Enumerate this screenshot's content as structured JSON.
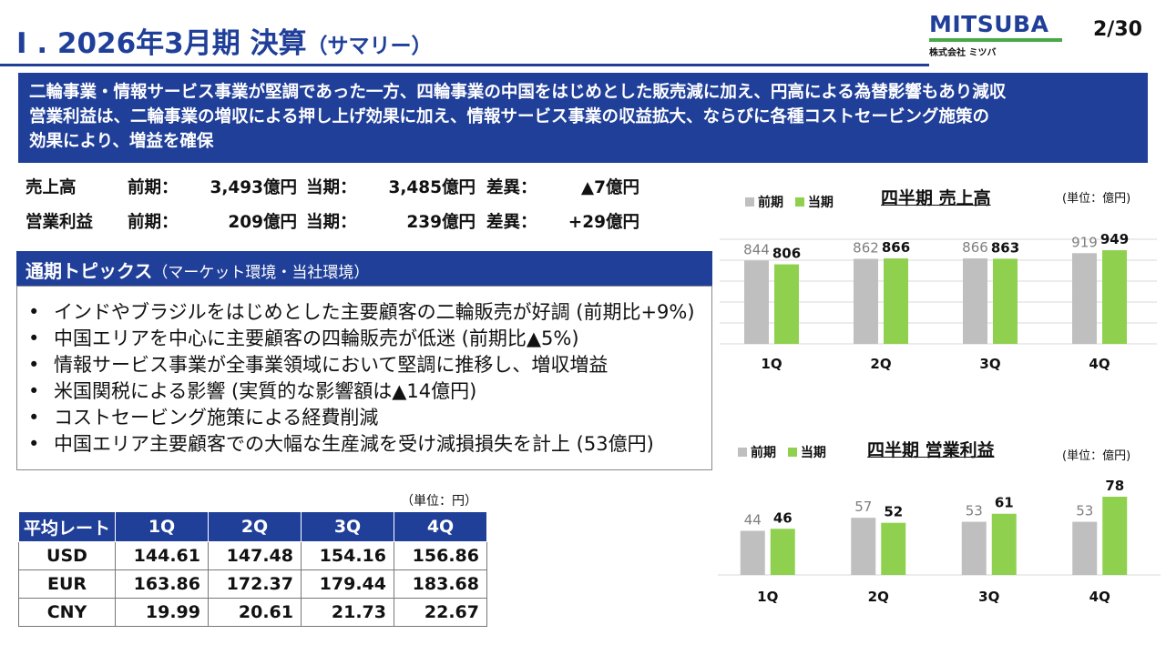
{
  "header": {
    "title_main": "I . 2026年3月期 決算",
    "title_sub": "（サマリー）",
    "page_number": "2/30",
    "logo_word": "MITSUBA",
    "logo_sub": "株式会社 ミツバ",
    "colors": {
      "brand_blue": "#203f99",
      "brand_green": "#4aa84a"
    }
  },
  "summary_banner": [
    "二輪事業・情報サービス事業が堅調であった一方、四輪事業の中国をはじめとした販売減に加え、円高による為替影響もあり減収",
    "営業利益は、二輪事業の増収による押し上げ効果に加え、情報サービス事業の収益拡大、ならびに各種コストセービング施策の",
    "効果により、増益を確保"
  ],
  "key_figures": [
    {
      "label": "売上高",
      "prev_label": "前期：",
      "prev": "3,493億円",
      "curr_label": "当期：",
      "curr": "3,485億円",
      "diff_label": "差異：",
      "diff": "▲7億円"
    },
    {
      "label": "営業利益",
      "prev_label": "前期：",
      "prev": "209億円",
      "curr_label": "当期：",
      "curr": "239億円",
      "diff_label": "差異：",
      "diff": "+29億円"
    }
  ],
  "topics": {
    "heading": "通期トピックス",
    "heading_note": "（マーケット環境・当社環境）",
    "items": [
      "インドやブラジルをはじめとした主要顧客の二輪販売が好調 (前期比+9%)",
      "中国エリアを中心に主要顧客の四輪販売が低迷 (前期比▲5%)",
      "情報サービス事業が全事業領域において堅調に推移し、増収増益",
      "米国関税による影響 (実質的な影響額は▲14億円)",
      "コストセービング施策による経費削減",
      "中国エリア主要顧客での大幅な生産減を受け減損損失を計上 (53億円)"
    ]
  },
  "rates": {
    "unit": "（単位：円）",
    "headers": [
      "平均レート",
      "1Q",
      "2Q",
      "3Q",
      "4Q"
    ],
    "rows": [
      [
        "USD",
        "144.61",
        "147.48",
        "154.16",
        "156.86"
      ],
      [
        "EUR",
        "163.86",
        "172.37",
        "179.44",
        "183.68"
      ],
      [
        "CNY",
        "19.99",
        "20.61",
        "21.73",
        "22.67"
      ]
    ]
  },
  "chart_data": [
    {
      "type": "bar",
      "title": "四半期 売上高",
      "unit": "(単位：億円)",
      "categories": [
        "1Q",
        "2Q",
        "3Q",
        "4Q"
      ],
      "series": [
        {
          "name": "前期",
          "values": [
            844,
            862,
            866,
            919
          ],
          "color": "#bfbfbf"
        },
        {
          "name": "当期",
          "values": [
            806,
            866,
            863,
            949
          ],
          "color": "#8fd14f"
        }
      ],
      "ylim": [
        0,
        1060
      ],
      "grid": true,
      "legend": "top-left"
    },
    {
      "type": "bar",
      "title": "四半期 営業利益",
      "unit": "(単位：億円)",
      "categories": [
        "1Q",
        "2Q",
        "3Q",
        "4Q"
      ],
      "series": [
        {
          "name": "前期",
          "values": [
            44,
            57,
            53,
            53
          ],
          "color": "#bfbfbf"
        },
        {
          "name": "当期",
          "values": [
            46,
            52,
            61,
            78
          ],
          "color": "#8fd14f"
        }
      ],
      "ylim": [
        0,
        78
      ],
      "grid": false,
      "legend": "top-left"
    }
  ]
}
